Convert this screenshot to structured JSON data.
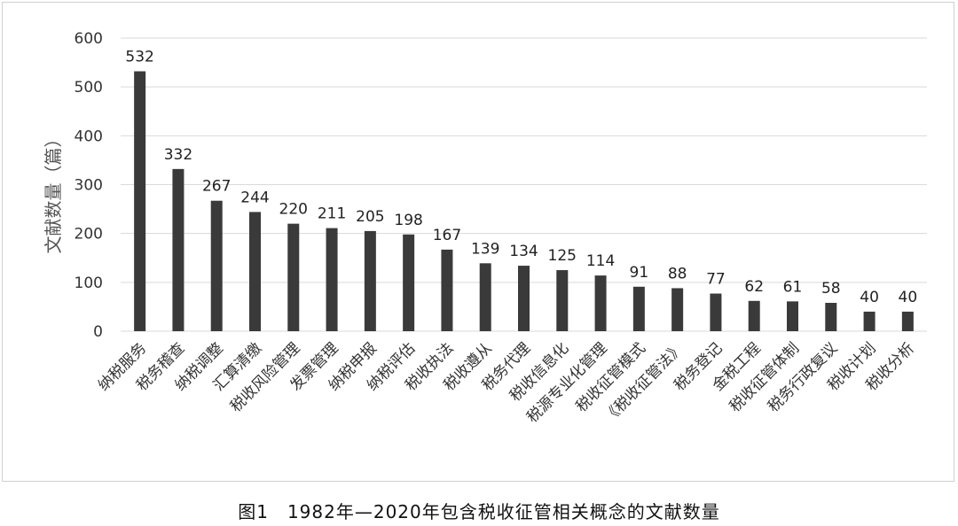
{
  "caption": "图1　1982年—2020年包含税收征管相关概念的文献数量",
  "chart_data": {
    "type": "bar",
    "title": "",
    "xlabel": "",
    "ylabel": "文献数量（篇）",
    "ylim": [
      0,
      600
    ],
    "yticks": [
      0,
      100,
      200,
      300,
      400,
      500,
      600
    ],
    "grid": true,
    "categories": [
      "纳税服务",
      "税务稽查",
      "纳税调整",
      "汇算清缴",
      "税收风险管理",
      "发票管理",
      "纳税申报",
      "纳税评估",
      "税收执法",
      "税收遵从",
      "税务代理",
      "税收信息化",
      "税源专业化管理",
      "税收征管模式",
      "《税收征管法》",
      "税务登记",
      "金税工程",
      "税收征管体制",
      "税务行政复议",
      "税收计划",
      "税收分析"
    ],
    "values": [
      532,
      332,
      267,
      244,
      220,
      211,
      205,
      198,
      167,
      139,
      134,
      125,
      114,
      91,
      88,
      77,
      62,
      61,
      58,
      40,
      40
    ],
    "bar_color": "#3a3a3a",
    "grid_color": "#d9d9d9"
  }
}
